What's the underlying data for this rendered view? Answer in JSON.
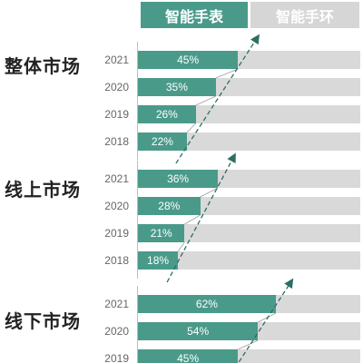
{
  "legend": {
    "smartwatch": "智能手表",
    "smartband": "智能手环"
  },
  "colors": {
    "smartwatch": "#4a9a8a",
    "smartband": "#d9d9d9",
    "trend_arrow": "#2e6e62"
  },
  "chart_data": {
    "type": "bar",
    "orientation": "horizontal",
    "xlim": [
      0,
      100
    ],
    "series_names": [
      "智能手表",
      "智能手环"
    ],
    "panels": [
      {
        "title": "整体市场",
        "categories": [
          "2021",
          "2020",
          "2019",
          "2018"
        ],
        "values": [
          45,
          35,
          26,
          22
        ],
        "labels": [
          "45%",
          "35%",
          "26%",
          "22%"
        ]
      },
      {
        "title": "线上市场",
        "categories": [
          "2021",
          "2020",
          "2019",
          "2018"
        ],
        "values": [
          36,
          28,
          21,
          18
        ],
        "labels": [
          "36%",
          "28%",
          "21%",
          "18%"
        ]
      },
      {
        "title": "线下市场",
        "categories": [
          "2021",
          "2020",
          "2019"
        ],
        "values": [
          62,
          54,
          45
        ],
        "labels": [
          "62%",
          "54%",
          "45%"
        ]
      }
    ]
  }
}
